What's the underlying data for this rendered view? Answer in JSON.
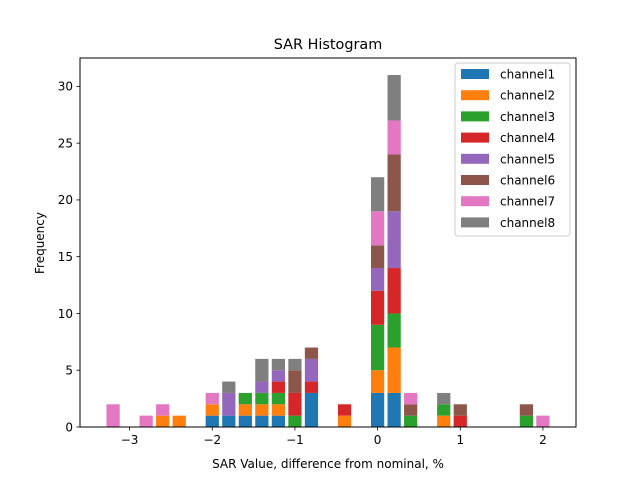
{
  "chart_data": {
    "type": "bar",
    "stacked": true,
    "title": "SAR Histogram",
    "xlabel": "SAR Value, difference from nominal, %",
    "ylabel": "Frequency",
    "xlim": [
      -3.6,
      2.4
    ],
    "ylim": [
      0,
      32.5
    ],
    "xticks": [
      -3,
      -2,
      -1,
      0,
      1,
      2
    ],
    "xtick_labels": [
      "−3",
      "−2",
      "−1",
      "0",
      "1",
      "2"
    ],
    "yticks": [
      0,
      5,
      10,
      15,
      20,
      25,
      30
    ],
    "ytick_labels": [
      "0",
      "5",
      "10",
      "15",
      "20",
      "25",
      "30"
    ],
    "bin_width": 0.2,
    "bar_width_fraction": 0.8,
    "bin_centers": [
      -3.2,
      -3.0,
      -2.8,
      -2.6,
      -2.4,
      -2.2,
      -2.0,
      -1.8,
      -1.6,
      -1.4,
      -1.2,
      -1.0,
      -0.8,
      -0.6,
      -0.4,
      -0.2,
      0.0,
      0.2,
      0.4,
      0.6,
      0.8,
      1.0,
      1.2,
      1.4,
      1.6,
      1.8,
      2.0
    ],
    "legend_position": "top-right",
    "series": [
      {
        "name": "channel1",
        "color": "#1f77b4",
        "values": [
          0,
          0,
          0,
          0,
          0,
          0,
          1,
          1,
          1,
          1,
          1,
          0,
          3,
          0,
          0,
          0,
          3,
          3,
          0,
          0,
          0,
          0,
          0,
          0,
          0,
          0,
          0
        ]
      },
      {
        "name": "channel2",
        "color": "#ff7f0e",
        "values": [
          0,
          0,
          0,
          1,
          1,
          0,
          1,
          0,
          1,
          1,
          1,
          0,
          0,
          0,
          1,
          0,
          2,
          4,
          0,
          0,
          1,
          0,
          0,
          0,
          0,
          0,
          0
        ]
      },
      {
        "name": "channel3",
        "color": "#2ca02c",
        "values": [
          0,
          0,
          0,
          0,
          0,
          0,
          0,
          0,
          1,
          1,
          1,
          1,
          0,
          0,
          0,
          0,
          4,
          3,
          1,
          0,
          1,
          0,
          0,
          0,
          0,
          1,
          0
        ]
      },
      {
        "name": "channel4",
        "color": "#d62728",
        "values": [
          0,
          0,
          0,
          0,
          0,
          0,
          0,
          0,
          0,
          0,
          1,
          2,
          1,
          0,
          1,
          0,
          3,
          4,
          0,
          0,
          0,
          1,
          0,
          0,
          0,
          0,
          0
        ]
      },
      {
        "name": "channel5",
        "color": "#9467bd",
        "values": [
          0,
          0,
          0,
          0,
          0,
          0,
          0,
          2,
          0,
          1,
          1,
          0,
          2,
          0,
          0,
          0,
          2,
          5,
          0,
          0,
          0,
          0,
          0,
          0,
          0,
          0,
          0
        ]
      },
      {
        "name": "channel6",
        "color": "#8c564b",
        "values": [
          0,
          0,
          0,
          0,
          0,
          0,
          0,
          0,
          0,
          0,
          0,
          2,
          1,
          0,
          0,
          0,
          2,
          5,
          1,
          0,
          0,
          1,
          0,
          0,
          0,
          1,
          0
        ]
      },
      {
        "name": "channel7",
        "color": "#e377c2",
        "values": [
          2,
          0,
          1,
          1,
          0,
          0,
          1,
          0,
          0,
          0,
          0,
          0,
          0,
          0,
          0,
          0,
          3,
          3,
          1,
          0,
          0,
          0,
          0,
          0,
          0,
          0,
          1
        ]
      },
      {
        "name": "channel8",
        "color": "#7f7f7f",
        "values": [
          0,
          0,
          0,
          0,
          0,
          0,
          0,
          1,
          0,
          2,
          1,
          1,
          0,
          0,
          0,
          0,
          3,
          4,
          0,
          0,
          1,
          0,
          0,
          0,
          0,
          0,
          0
        ]
      }
    ]
  }
}
